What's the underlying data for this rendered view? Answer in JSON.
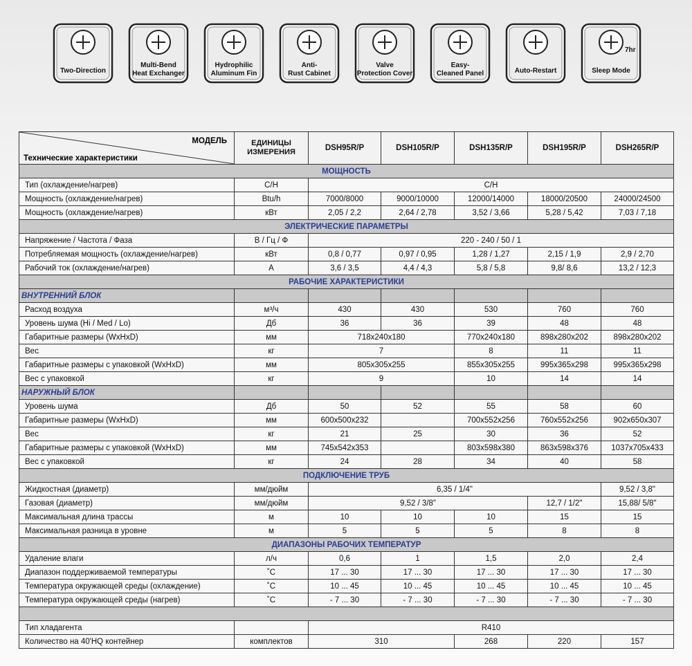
{
  "icons": [
    {
      "lines": [
        "Two-Direction"
      ]
    },
    {
      "lines": [
        "Multi-Bend",
        "Heat Exchanger"
      ]
    },
    {
      "lines": [
        "Hydrophilic",
        "Aluminum Fin"
      ]
    },
    {
      "lines": [
        "Anti-",
        "Rust Cabinet"
      ]
    },
    {
      "lines": [
        "Valve",
        "Protection Cover"
      ]
    },
    {
      "lines": [
        "Easy-",
        "Cleaned Panel"
      ]
    },
    {
      "lines": [
        "Auto-Restart"
      ]
    },
    {
      "lines": [
        "Sleep Mode"
      ],
      "badge": "7hr"
    }
  ],
  "table": {
    "header": {
      "model": "МОДЕЛЬ",
      "characteristics": "Технические характеристики",
      "units": "ЕДИНИЦЫ ИЗМЕРЕНИЯ",
      "models": [
        "DSH95R/P",
        "DSH105R/P",
        "DSH135R/P",
        "DSH195R/P",
        "DSH265R/P"
      ]
    },
    "rows": [
      {
        "kind": "section",
        "label": "МОЩНОСТЬ"
      },
      {
        "kind": "data",
        "label": "Тип (охлаждение/нагрев)",
        "unit": "C/H",
        "cells": [
          {
            "text": "C/H",
            "span": 5
          }
        ]
      },
      {
        "kind": "data",
        "label": "Мощность (охлаждение/нагрев)",
        "unit": "Btu/h",
        "cells": [
          {
            "text": "7000/8000"
          },
          {
            "text": "9000/10000"
          },
          {
            "text": "12000/14000"
          },
          {
            "text": "18000/20500"
          },
          {
            "text": "24000/24500"
          }
        ]
      },
      {
        "kind": "data",
        "label": "Мощность (охлаждение/нагрев)",
        "unit": "кВт",
        "cells": [
          {
            "text": "2,05 / 2,2"
          },
          {
            "text": "2,64 / 2,78"
          },
          {
            "text": "3,52 / 3,66"
          },
          {
            "text": "5,28 / 5,42"
          },
          {
            "text": "7,03 / 7,18"
          }
        ]
      },
      {
        "kind": "section",
        "label": "ЭЛЕКТРИЧЕСКИЕ ПАРАМЕТРЫ"
      },
      {
        "kind": "data",
        "label": "Напряжение / Частота / Фаза",
        "unit": "В / Гц / Ф",
        "cells": [
          {
            "text": "220 - 240 / 50 / 1",
            "span": 5
          }
        ]
      },
      {
        "kind": "data",
        "label": "Потребляемая мощность (охлаждение/нагрев)",
        "unit": "кВт",
        "cells": [
          {
            "text": "0,8 / 0,77"
          },
          {
            "text": "0,97 / 0,95"
          },
          {
            "text": "1,28 / 1,27"
          },
          {
            "text": "2,15 / 1,9"
          },
          {
            "text": "2,9 / 2,70"
          }
        ]
      },
      {
        "kind": "data",
        "label": "Рабочий ток (охлаждение/нагрев)",
        "unit": "А",
        "cells": [
          {
            "text": "3,6 / 3,5"
          },
          {
            "text": "4,4 / 4,3"
          },
          {
            "text": "5,8 / 5,8"
          },
          {
            "text": "9,8/ 8,6"
          },
          {
            "text": "13,2 / 12,3"
          }
        ]
      },
      {
        "kind": "section",
        "label": "РАБОЧИЕ ХАРАКТЕРИСТИКИ"
      },
      {
        "kind": "subsection",
        "label": "ВНУТРЕННИЙ БЛОК"
      },
      {
        "kind": "data",
        "label": "Расход воздуха",
        "unit": "м³/ч",
        "cells": [
          {
            "text": "430"
          },
          {
            "text": "430"
          },
          {
            "text": "530"
          },
          {
            "text": "760"
          },
          {
            "text": "760"
          }
        ]
      },
      {
        "kind": "data",
        "label": "Уровень шума (Hi / Med / Lo)",
        "unit": "Дб",
        "cells": [
          {
            "text": "36"
          },
          {
            "text": "36"
          },
          {
            "text": "39"
          },
          {
            "text": "48"
          },
          {
            "text": "48"
          }
        ]
      },
      {
        "kind": "data",
        "label": "Габаритные размеры (WxHxD)",
        "unit": "мм",
        "cells": [
          {
            "text": "718x240x180",
            "span": 2
          },
          {
            "text": "770x240x180"
          },
          {
            "text": "898x280x202"
          },
          {
            "text": "898x280x202"
          }
        ]
      },
      {
        "kind": "data",
        "label": "Вес",
        "unit": "кг",
        "cells": [
          {
            "text": "7",
            "span": 2
          },
          {
            "text": "8"
          },
          {
            "text": "11"
          },
          {
            "text": "11"
          }
        ]
      },
      {
        "kind": "data",
        "label": "Габаритные размеры с упаковкой (WxHxD)",
        "unit": "мм",
        "cells": [
          {
            "text": "805x305x255",
            "span": 2
          },
          {
            "text": "855x305x255"
          },
          {
            "text": "995x365x298"
          },
          {
            "text": "995x365x298"
          }
        ]
      },
      {
        "kind": "data",
        "label": "Вес с упаковкой",
        "unit": "кг",
        "cells": [
          {
            "text": "9",
            "span": 2
          },
          {
            "text": "10"
          },
          {
            "text": "14"
          },
          {
            "text": "14"
          }
        ]
      },
      {
        "kind": "subsection",
        "label": "НАРУЖНЫЙ БЛОК"
      },
      {
        "kind": "data",
        "label": "Уровень шума",
        "unit": "Дб",
        "cells": [
          {
            "text": "50"
          },
          {
            "text": "52"
          },
          {
            "text": "55"
          },
          {
            "text": "58"
          },
          {
            "text": "60"
          }
        ]
      },
      {
        "kind": "data",
        "label": "Габаритные размеры (WxHxD)",
        "unit": "мм",
        "cells": [
          {
            "text": "600x500x232"
          },
          {
            "text": null
          },
          {
            "text": "700x552x256"
          },
          {
            "text": "760x552x256"
          },
          {
            "text": "902x650x307"
          }
        ]
      },
      {
        "kind": "data",
        "label": "Вес",
        "unit": "кг",
        "cells": [
          {
            "text": "21"
          },
          {
            "text": "25"
          },
          {
            "text": "30"
          },
          {
            "text": "36"
          },
          {
            "text": "52"
          }
        ]
      },
      {
        "kind": "data",
        "label": "Габаритные размеры с упаковкой (WxHxD)",
        "unit": "мм",
        "cells": [
          {
            "text": "745x542x353"
          },
          {
            "text": null
          },
          {
            "text": "803x598x380"
          },
          {
            "text": "863x598x376"
          },
          {
            "text": "1037x705x433"
          }
        ]
      },
      {
        "kind": "data",
        "label": "Вес с упаковкой",
        "unit": "кг",
        "cells": [
          {
            "text": "24"
          },
          {
            "text": "28"
          },
          {
            "text": "34"
          },
          {
            "text": "40"
          },
          {
            "text": "58"
          }
        ]
      },
      {
        "kind": "section",
        "label": "ПОДКЛЮЧЕНИЕ ТРУБ"
      },
      {
        "kind": "data",
        "label": "Жидкостная (диаметр)",
        "unit": "мм/дюйм",
        "cells": [
          {
            "text": "6,35 / 1/4\"",
            "span": 4
          },
          {
            "text": "9,52 / 3,8\""
          }
        ]
      },
      {
        "kind": "data",
        "label": "Газовая (диаметр)",
        "unit": "мм/дюйм",
        "cells": [
          {
            "text": "9,52 / 3/8\"",
            "span": 3
          },
          {
            "text": "12,7 / 1/2\""
          },
          {
            "text": "15,88/ 5/8\""
          }
        ]
      },
      {
        "kind": "data",
        "label": "Максимальная длина трассы",
        "unit": "м",
        "cells": [
          {
            "text": "10"
          },
          {
            "text": "10"
          },
          {
            "text": "10"
          },
          {
            "text": "15"
          },
          {
            "text": "15"
          }
        ]
      },
      {
        "kind": "data",
        "label": "Максимальная разница в уровне",
        "unit": "м",
        "cells": [
          {
            "text": "5"
          },
          {
            "text": "5"
          },
          {
            "text": "5"
          },
          {
            "text": "8"
          },
          {
            "text": "8"
          }
        ]
      },
      {
        "kind": "section",
        "label": "ДИАПАЗОНЫ РАБОЧИХ ТЕМПЕРАТУР"
      },
      {
        "kind": "data",
        "label": "Удаление влаги",
        "unit": "л/ч",
        "cells": [
          {
            "text": "0,6"
          },
          {
            "text": "1"
          },
          {
            "text": "1,5"
          },
          {
            "text": "2,0"
          },
          {
            "text": "2,4"
          }
        ]
      },
      {
        "kind": "data",
        "label": "Диапазон поддерживаемой температуры",
        "unit": "˚С",
        "cells": [
          {
            "text": "17 ... 30"
          },
          {
            "text": "17 ... 30"
          },
          {
            "text": "17 ... 30"
          },
          {
            "text": "17 ... 30"
          },
          {
            "text": "17 ... 30"
          }
        ]
      },
      {
        "kind": "data",
        "label": "Температура окружающей среды (охлаждение)",
        "unit": "˚С",
        "cells": [
          {
            "text": "10 ... 45"
          },
          {
            "text": "10 ... 45"
          },
          {
            "text": "10 ... 45"
          },
          {
            "text": "10 ... 45"
          },
          {
            "text": "10 ... 45"
          }
        ]
      },
      {
        "kind": "data",
        "label": "Температура окружающей среды (нагрев)",
        "unit": "˚С",
        "cells": [
          {
            "text": "- 7 ... 30"
          },
          {
            "text": "- 7 ... 30"
          },
          {
            "text": "- 7 ... 30"
          },
          {
            "text": "- 7 ... 30"
          },
          {
            "text": "- 7 ... 30"
          }
        ]
      },
      {
        "kind": "section",
        "label": null
      },
      {
        "kind": "data",
        "label": "Тип хладагента",
        "unit": null,
        "cells": [
          {
            "text": "R410",
            "span": 5
          }
        ]
      },
      {
        "kind": "data",
        "label": "Количество на 40'HQ контейнер",
        "unit": "комплектов",
        "cells": [
          {
            "text": "310",
            "span": 2
          },
          {
            "text": "268"
          },
          {
            "text": "220"
          },
          {
            "text": "157"
          }
        ]
      }
    ]
  }
}
